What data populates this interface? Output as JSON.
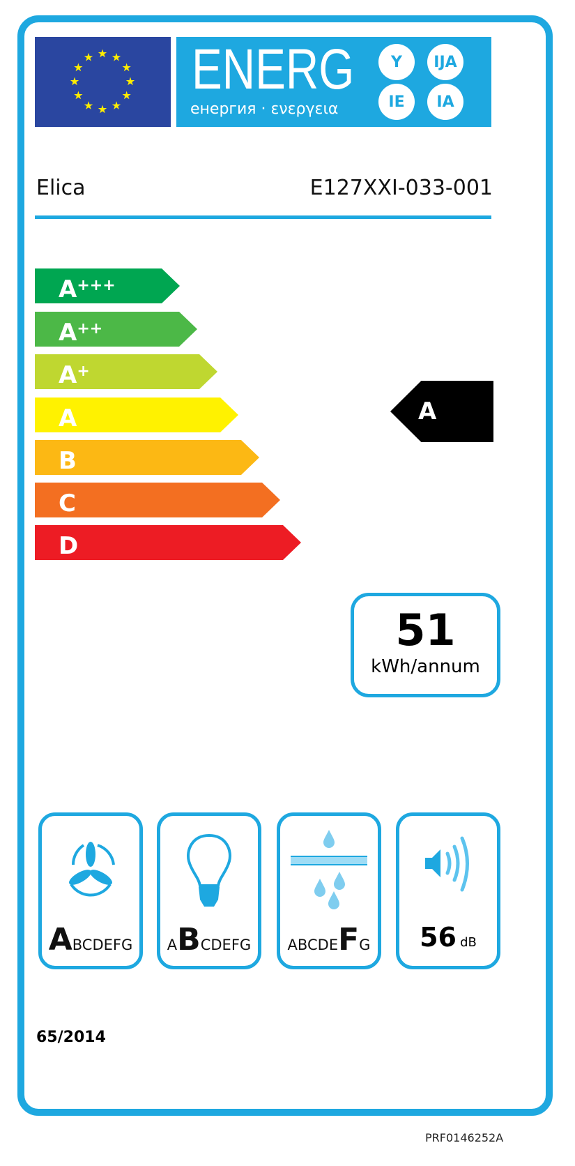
{
  "header": {
    "title": "ENERG",
    "subtitle": "енергия · ενεργεια",
    "suffixes": [
      "Y",
      "IJA",
      "IE",
      "IA"
    ],
    "flag_icon": "eu-flag"
  },
  "supplier": "Elica",
  "model": "E127XXI-033-001",
  "classes": [
    {
      "label": "A",
      "plus": "+++",
      "color": "#00a651"
    },
    {
      "label": "A",
      "plus": "++",
      "color": "#4cb847"
    },
    {
      "label": "A",
      "plus": "+",
      "color": "#bfd730"
    },
    {
      "label": "A",
      "plus": "",
      "color": "#fff200"
    },
    {
      "label": "B",
      "plus": "",
      "color": "#fcb814"
    },
    {
      "label": "C",
      "plus": "",
      "color": "#f36f21"
    },
    {
      "label": "D",
      "plus": "",
      "color": "#ed1c24"
    }
  ],
  "rating": {
    "label": "A",
    "color": "#000000"
  },
  "energy": {
    "value": "51",
    "unit": "kWh/annum"
  },
  "metrics": [
    {
      "icon": "fan-icon",
      "scale": [
        "A",
        "B",
        "C",
        "D",
        "E",
        "F",
        "G"
      ],
      "selected": 0
    },
    {
      "icon": "light-bulb-icon",
      "scale": [
        "A",
        "B",
        "C",
        "D",
        "E",
        "F",
        "G"
      ],
      "selected": 1
    },
    {
      "icon": "grease-filter-icon",
      "scale": [
        "A",
        "B",
        "C",
        "D",
        "E",
        "F",
        "G"
      ],
      "selected": 5
    },
    {
      "icon": "speaker-icon",
      "value": "56",
      "unit": "dB"
    }
  ],
  "regulation": "65/2014",
  "code": "PRF0146252A",
  "accent": "#1ea8e0"
}
